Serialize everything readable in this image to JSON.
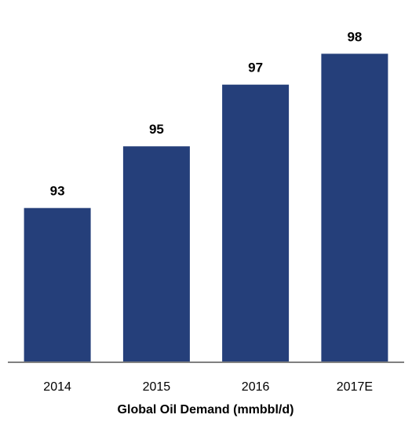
{
  "chart_data": {
    "type": "bar",
    "categories": [
      "2014",
      "2015",
      "2016",
      "2017E"
    ],
    "values": [
      93,
      95,
      97,
      98
    ],
    "data_labels": [
      "93",
      "95",
      "97",
      "98"
    ],
    "title": "",
    "xlabel": "Global Oil Demand (mmbbl/d)",
    "ylabel": "",
    "ylim": [
      88,
      98.8
    ],
    "grid": false,
    "legend": "none",
    "bar_color": "#253f7a",
    "axis_color": "#808080"
  }
}
